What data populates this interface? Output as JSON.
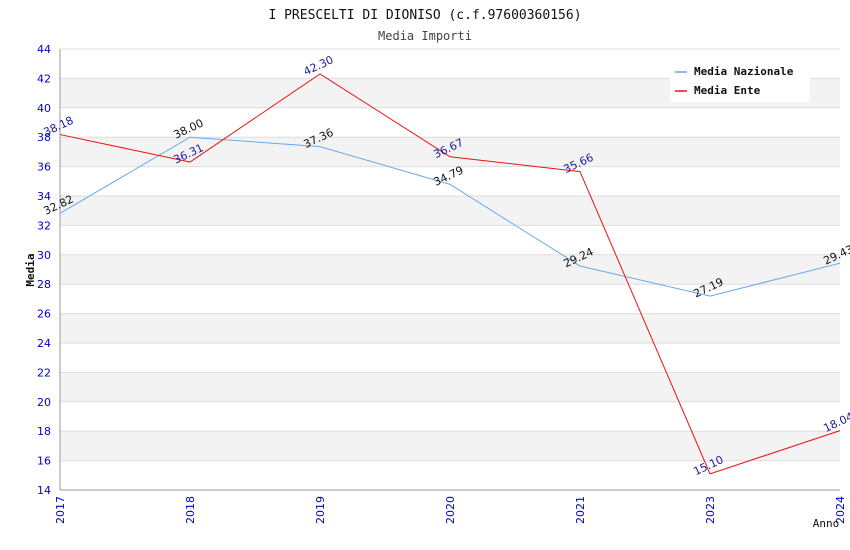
{
  "chart_data": {
    "type": "line",
    "title": "I PRESCELTI DI DIONISO (c.f.97600360156)",
    "subtitle": "Media Importi",
    "xlabel": "Anno",
    "ylabel": "Media",
    "x": [
      "2017",
      "2018",
      "2019",
      "2020",
      "2021",
      "2023",
      "2024"
    ],
    "ylim": [
      14,
      44
    ],
    "ytick_step": 2,
    "grid": "horizontal bands",
    "legend_position": "top-right",
    "series": [
      {
        "name": "Media Nazionale",
        "color": "#66aaee",
        "label_color": "#111111",
        "values": [
          32.82,
          38.0,
          37.36,
          34.79,
          29.24,
          27.19,
          29.43
        ]
      },
      {
        "name": "Media Ente",
        "color": "#ee1111",
        "label_color": "#1a1a99",
        "values": [
          38.18,
          36.31,
          42.3,
          36.67,
          35.66,
          15.1,
          18.04
        ]
      }
    ],
    "colors": {
      "axis_text": "#0000cc",
      "band_fill": "#f3f3f3",
      "grid_line": "#dddddd",
      "axis_line": "#999999"
    }
  }
}
